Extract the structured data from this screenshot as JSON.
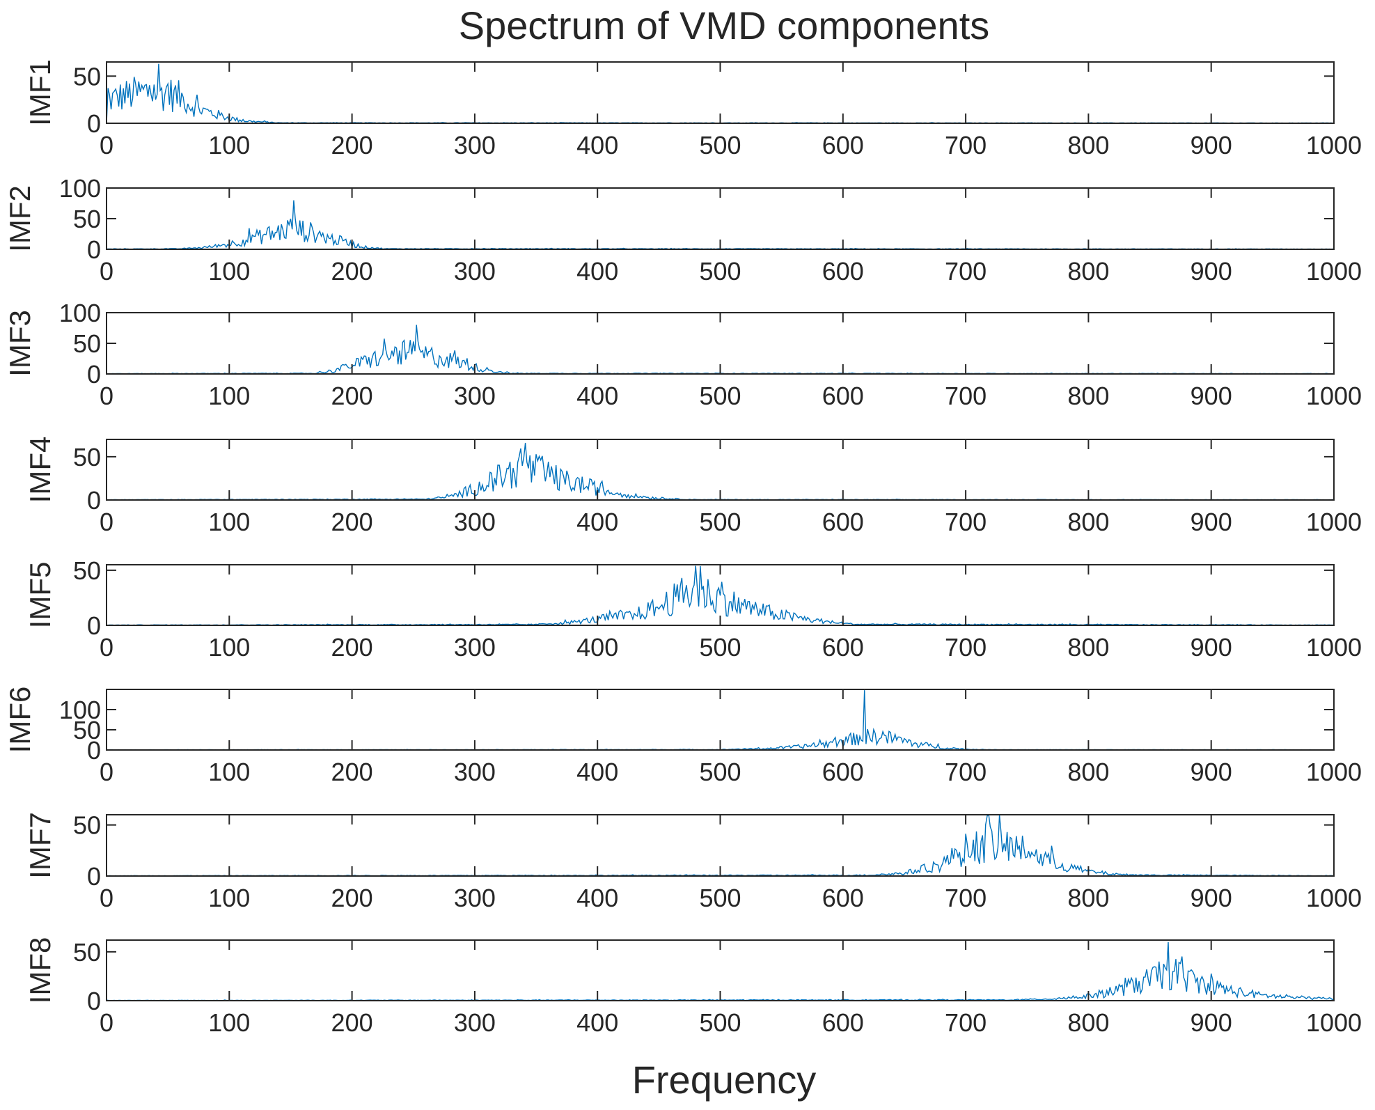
{
  "figure": {
    "title": "Spectrum of VMD components",
    "xlabel": "Frequency",
    "line_color": "#0072BD",
    "axis_color": "#262626"
  },
  "chart_data": [
    {
      "type": "line",
      "ylabel": "IMF1",
      "xlim": [
        0,
        1000
      ],
      "ylim": [
        0,
        65
      ],
      "xticks": [
        0,
        100,
        200,
        300,
        400,
        500,
        600,
        700,
        800,
        900,
        1000
      ],
      "yticks": [
        0,
        50
      ],
      "peak": {
        "x": 42,
        "y": 63
      },
      "envelope": [
        [
          0,
          0
        ],
        [
          0,
          25
        ],
        [
          10,
          30
        ],
        [
          20,
          33
        ],
        [
          30,
          35
        ],
        [
          40,
          37
        ],
        [
          50,
          34
        ],
        [
          60,
          30
        ],
        [
          70,
          20
        ],
        [
          80,
          14
        ],
        [
          90,
          10
        ],
        [
          100,
          6
        ],
        [
          110,
          3
        ],
        [
          120,
          2
        ],
        [
          140,
          0.5
        ],
        [
          1000,
          0.3
        ]
      ]
    },
    {
      "type": "line",
      "ylabel": "IMF2",
      "xlim": [
        0,
        1000
      ],
      "ylim": [
        0,
        100
      ],
      "xticks": [
        0,
        100,
        200,
        300,
        400,
        500,
        600,
        700,
        800,
        900,
        1000
      ],
      "yticks": [
        0,
        50,
        100
      ],
      "peak": {
        "x": 153,
        "y": 80
      },
      "envelope": [
        [
          0,
          0.5
        ],
        [
          60,
          1
        ],
        [
          80,
          3
        ],
        [
          100,
          9
        ],
        [
          120,
          20
        ],
        [
          140,
          30
        ],
        [
          150,
          38
        ],
        [
          160,
          33
        ],
        [
          170,
          28
        ],
        [
          180,
          20
        ],
        [
          190,
          15
        ],
        [
          200,
          9
        ],
        [
          210,
          4
        ],
        [
          225,
          1
        ],
        [
          1000,
          0.5
        ]
      ]
    },
    {
      "type": "line",
      "ylabel": "IMF3",
      "xlim": [
        0,
        1000
      ],
      "ylim": [
        0,
        100
      ],
      "xticks": [
        0,
        100,
        200,
        300,
        400,
        500,
        600,
        700,
        800,
        900,
        1000
      ],
      "yticks": [
        0,
        50,
        100
      ],
      "peak": {
        "x": 252,
        "y": 80
      },
      "envelope": [
        [
          0,
          0.5
        ],
        [
          170,
          1
        ],
        [
          185,
          6
        ],
        [
          200,
          15
        ],
        [
          220,
          28
        ],
        [
          240,
          36
        ],
        [
          250,
          38
        ],
        [
          260,
          33
        ],
        [
          280,
          24
        ],
        [
          300,
          12
        ],
        [
          315,
          5
        ],
        [
          330,
          1
        ],
        [
          1000,
          0.5
        ]
      ]
    },
    {
      "type": "line",
      "ylabel": "IMF4",
      "xlim": [
        0,
        1000
      ],
      "ylim": [
        0,
        70
      ],
      "xticks": [
        0,
        100,
        200,
        300,
        400,
        500,
        600,
        700,
        800,
        900,
        1000
      ],
      "yticks": [
        0,
        50
      ],
      "peak": {
        "x": 341,
        "y": 66
      },
      "envelope": [
        [
          0,
          0.3
        ],
        [
          260,
          1
        ],
        [
          280,
          4
        ],
        [
          300,
          14
        ],
        [
          320,
          28
        ],
        [
          340,
          40
        ],
        [
          350,
          37
        ],
        [
          370,
          25
        ],
        [
          390,
          18
        ],
        [
          410,
          10
        ],
        [
          430,
          5
        ],
        [
          450,
          2
        ],
        [
          480,
          0.5
        ],
        [
          1000,
          0.3
        ]
      ]
    },
    {
      "type": "line",
      "ylabel": "IMF5",
      "xlim": [
        0,
        1000
      ],
      "ylim": [
        0,
        55
      ],
      "xticks": [
        0,
        100,
        200,
        300,
        400,
        500,
        600,
        700,
        800,
        900,
        1000
      ],
      "yticks": [
        0,
        50
      ],
      "peak": {
        "x": 480,
        "y": 54
      },
      "envelope": [
        [
          0,
          0.3
        ],
        [
          350,
          0.8
        ],
        [
          380,
          3
        ],
        [
          400,
          6
        ],
        [
          430,
          10
        ],
        [
          450,
          18
        ],
        [
          470,
          30
        ],
        [
          480,
          34
        ],
        [
          490,
          30
        ],
        [
          510,
          22
        ],
        [
          530,
          15
        ],
        [
          550,
          10
        ],
        [
          570,
          6
        ],
        [
          590,
          3
        ],
        [
          610,
          1
        ],
        [
          1000,
          0.3
        ]
      ]
    },
    {
      "type": "line",
      "ylabel": "IMF6",
      "xlim": [
        0,
        1000
      ],
      "ylim": [
        0,
        150
      ],
      "xticks": [
        0,
        100,
        200,
        300,
        400,
        500,
        600,
        700,
        800,
        900,
        1000
      ],
      "yticks": [
        0,
        50,
        100
      ],
      "peak": {
        "x": 618,
        "y": 148
      },
      "envelope": [
        [
          0,
          0.5
        ],
        [
          500,
          1
        ],
        [
          540,
          4
        ],
        [
          570,
          10
        ],
        [
          590,
          18
        ],
        [
          610,
          30
        ],
        [
          620,
          35
        ],
        [
          630,
          38
        ],
        [
          640,
          30
        ],
        [
          660,
          16
        ],
        [
          680,
          7
        ],
        [
          700,
          2
        ],
        [
          720,
          0.8
        ],
        [
          1000,
          0.5
        ]
      ]
    },
    {
      "type": "line",
      "ylabel": "IMF7",
      "xlim": [
        0,
        1000
      ],
      "ylim": [
        0,
        60
      ],
      "xticks": [
        0,
        100,
        200,
        300,
        400,
        500,
        600,
        700,
        800,
        900,
        1000
      ],
      "yticks": [
        0,
        50
      ],
      "peak": {
        "x": 718,
        "y": 59
      },
      "envelope": [
        [
          0,
          0.3
        ],
        [
          620,
          0.8
        ],
        [
          650,
          3
        ],
        [
          680,
          12
        ],
        [
          700,
          28
        ],
        [
          720,
          36
        ],
        [
          740,
          30
        ],
        [
          760,
          20
        ],
        [
          780,
          10
        ],
        [
          800,
          5
        ],
        [
          820,
          2
        ],
        [
          840,
          1
        ],
        [
          1000,
          0.3
        ]
      ]
    },
    {
      "type": "line",
      "ylabel": "IMF8",
      "xlim": [
        0,
        1000
      ],
      "ylim": [
        0,
        62
      ],
      "xticks": [
        0,
        100,
        200,
        300,
        400,
        500,
        600,
        700,
        800,
        900,
        1000
      ],
      "yticks": [
        0,
        50
      ],
      "peak": {
        "x": 865,
        "y": 60
      },
      "envelope": [
        [
          0,
          0.3
        ],
        [
          740,
          0.8
        ],
        [
          770,
          2
        ],
        [
          800,
          5
        ],
        [
          820,
          10
        ],
        [
          840,
          18
        ],
        [
          860,
          28
        ],
        [
          870,
          30
        ],
        [
          880,
          24
        ],
        [
          900,
          16
        ],
        [
          920,
          10
        ],
        [
          940,
          6
        ],
        [
          960,
          4
        ],
        [
          980,
          3
        ],
        [
          1000,
          2
        ]
      ]
    }
  ]
}
